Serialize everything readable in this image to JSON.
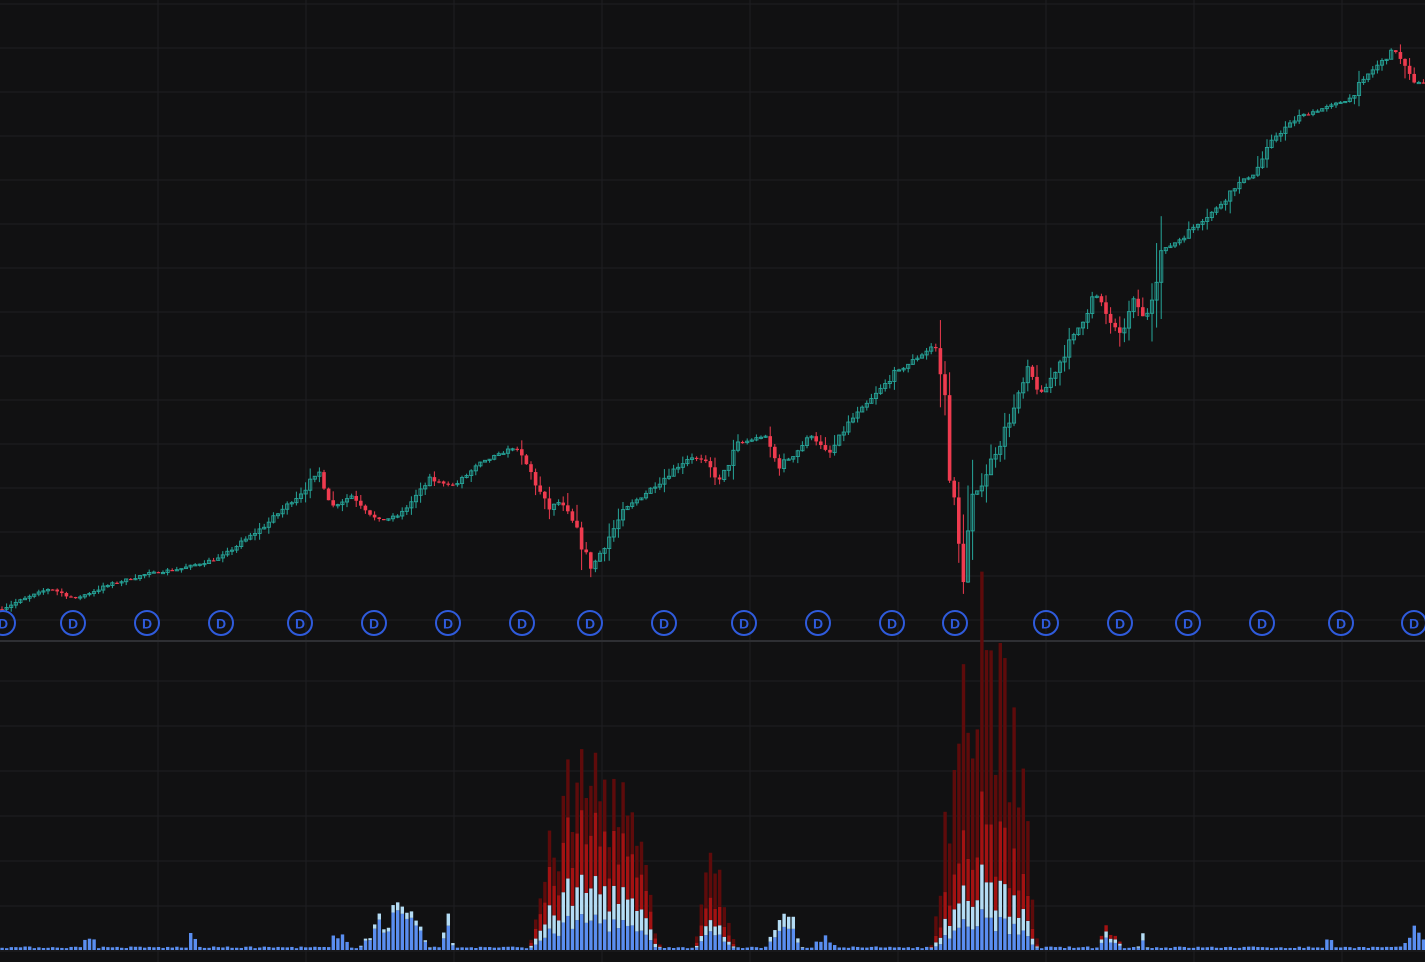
{
  "colors": {
    "background": "#111112",
    "grid": "#1e1e22",
    "divider": "#2e2f33",
    "candle_up": "#26a69a",
    "candle_down": "#ef3b4f",
    "dividend_marker": "#2f5bdc",
    "vol_level1": "#5a8ef0",
    "vol_level2": "#b4dcf4",
    "vol_level3": "#a31212",
    "vol_level4": "#5e0b0b"
  },
  "icons": {
    "dividend_marker": "circle-d-icon"
  },
  "dividend_marker_label": "D",
  "chart_data": [
    {
      "type": "candlestick",
      "title": "",
      "price_path": [
        [
          0,
          0.04
        ],
        [
          50,
          0.08
        ],
        [
          75,
          0.06
        ],
        [
          110,
          0.087
        ],
        [
          150,
          0.109
        ],
        [
          180,
          0.117
        ],
        [
          220,
          0.138
        ],
        [
          265,
          0.2
        ],
        [
          300,
          0.262
        ],
        [
          320,
          0.303
        ],
        [
          332,
          0.236
        ],
        [
          352,
          0.258
        ],
        [
          378,
          0.208
        ],
        [
          400,
          0.22
        ],
        [
          430,
          0.288
        ],
        [
          455,
          0.277
        ],
        [
          480,
          0.319
        ],
        [
          515,
          0.351
        ],
        [
          530,
          0.305
        ],
        [
          548,
          0.231
        ],
        [
          560,
          0.246
        ],
        [
          575,
          0.196
        ],
        [
          592,
          0.119
        ],
        [
          605,
          0.165
        ],
        [
          625,
          0.231
        ],
        [
          660,
          0.285
        ],
        [
          690,
          0.333
        ],
        [
          705,
          0.322
        ],
        [
          720,
          0.285
        ],
        [
          738,
          0.356
        ],
        [
          765,
          0.373
        ],
        [
          778,
          0.313
        ],
        [
          792,
          0.333
        ],
        [
          812,
          0.375
        ],
        [
          828,
          0.333
        ],
        [
          850,
          0.4
        ],
        [
          870,
          0.439
        ],
        [
          895,
          0.492
        ],
        [
          918,
          0.523
        ],
        [
          935,
          0.548
        ],
        [
          945,
          0.444
        ],
        [
          950,
          0.322
        ],
        [
          962,
          0.088
        ],
        [
          972,
          0.242
        ],
        [
          992,
          0.327
        ],
        [
          1012,
          0.412
        ],
        [
          1028,
          0.496
        ],
        [
          1042,
          0.45
        ],
        [
          1060,
          0.515
        ],
        [
          1080,
          0.585
        ],
        [
          1095,
          0.646
        ],
        [
          1105,
          0.608
        ],
        [
          1120,
          0.56
        ],
        [
          1135,
          0.635
        ],
        [
          1145,
          0.587
        ],
        [
          1160,
          0.723
        ],
        [
          1185,
          0.756
        ],
        [
          1200,
          0.785
        ],
        [
          1215,
          0.804
        ],
        [
          1235,
          0.85
        ],
        [
          1255,
          0.877
        ],
        [
          1275,
          0.946
        ],
        [
          1300,
          0.985
        ],
        [
          1330,
          1.004
        ],
        [
          1350,
          1.019
        ],
        [
          1370,
          1.069
        ],
        [
          1395,
          1.112
        ],
        [
          1410,
          1.056
        ],
        [
          1425,
          1.046
        ]
      ],
      "dividend_markers_x": [
        3,
        73,
        147,
        221,
        300,
        374,
        448,
        522,
        590,
        664,
        744,
        818,
        892,
        955,
        1046,
        1120,
        1188,
        1262,
        1341,
        1414
      ],
      "axis_labels_visible": false
    },
    {
      "type": "stacked-bar",
      "title": "",
      "levels": [
        "level1",
        "level2",
        "level3",
        "level4"
      ],
      "spikes": [
        {
          "center": 90,
          "width": 14,
          "level1": 0.04,
          "level2": 0,
          "level3": 0,
          "level4": 0
        },
        {
          "center": 192,
          "width": 10,
          "level1": 0.05,
          "level2": 0,
          "level3": 0,
          "level4": 0
        },
        {
          "center": 340,
          "width": 20,
          "level1": 0.06,
          "level2": 0,
          "level3": 0,
          "level4": 0
        },
        {
          "center": 395,
          "width": 60,
          "level1": 0.1,
          "level2": 0.02,
          "level3": 0,
          "level4": 0
        },
        {
          "center": 448,
          "width": 10,
          "level1": 0.06,
          "level2": 0.03,
          "level3": 0,
          "level4": 0
        },
        {
          "center": 595,
          "width": 110,
          "level1": 0.1,
          "level2": 0.11,
          "level3": 0.18,
          "level4": 0.17
        },
        {
          "center": 715,
          "width": 34,
          "level1": 0.05,
          "level2": 0.03,
          "level3": 0.06,
          "level4": 0.12
        },
        {
          "center": 785,
          "width": 30,
          "level1": 0.07,
          "level2": 0.04,
          "level3": 0,
          "level4": 0
        },
        {
          "center": 825,
          "width": 20,
          "level1": 0.05,
          "level2": 0,
          "level3": 0,
          "level4": 0
        },
        {
          "center": 985,
          "width": 90,
          "level1": 0.1,
          "level2": 0.11,
          "level3": 0.18,
          "level4": 0.54
        },
        {
          "center": 1110,
          "width": 20,
          "level1": 0.04,
          "level2": 0.02,
          "level3": 0.02,
          "level4": 0
        },
        {
          "center": 1143,
          "width": 8,
          "level1": 0.04,
          "level2": 0.03,
          "level3": 0,
          "level4": 0
        },
        {
          "center": 1330,
          "width": 8,
          "level1": 0.05,
          "level2": 0,
          "level3": 0,
          "level4": 0
        },
        {
          "center": 1415,
          "width": 20,
          "level1": 0.06,
          "level2": 0,
          "level3": 0,
          "level4": 0
        }
      ],
      "axis_labels_visible": false
    }
  ]
}
